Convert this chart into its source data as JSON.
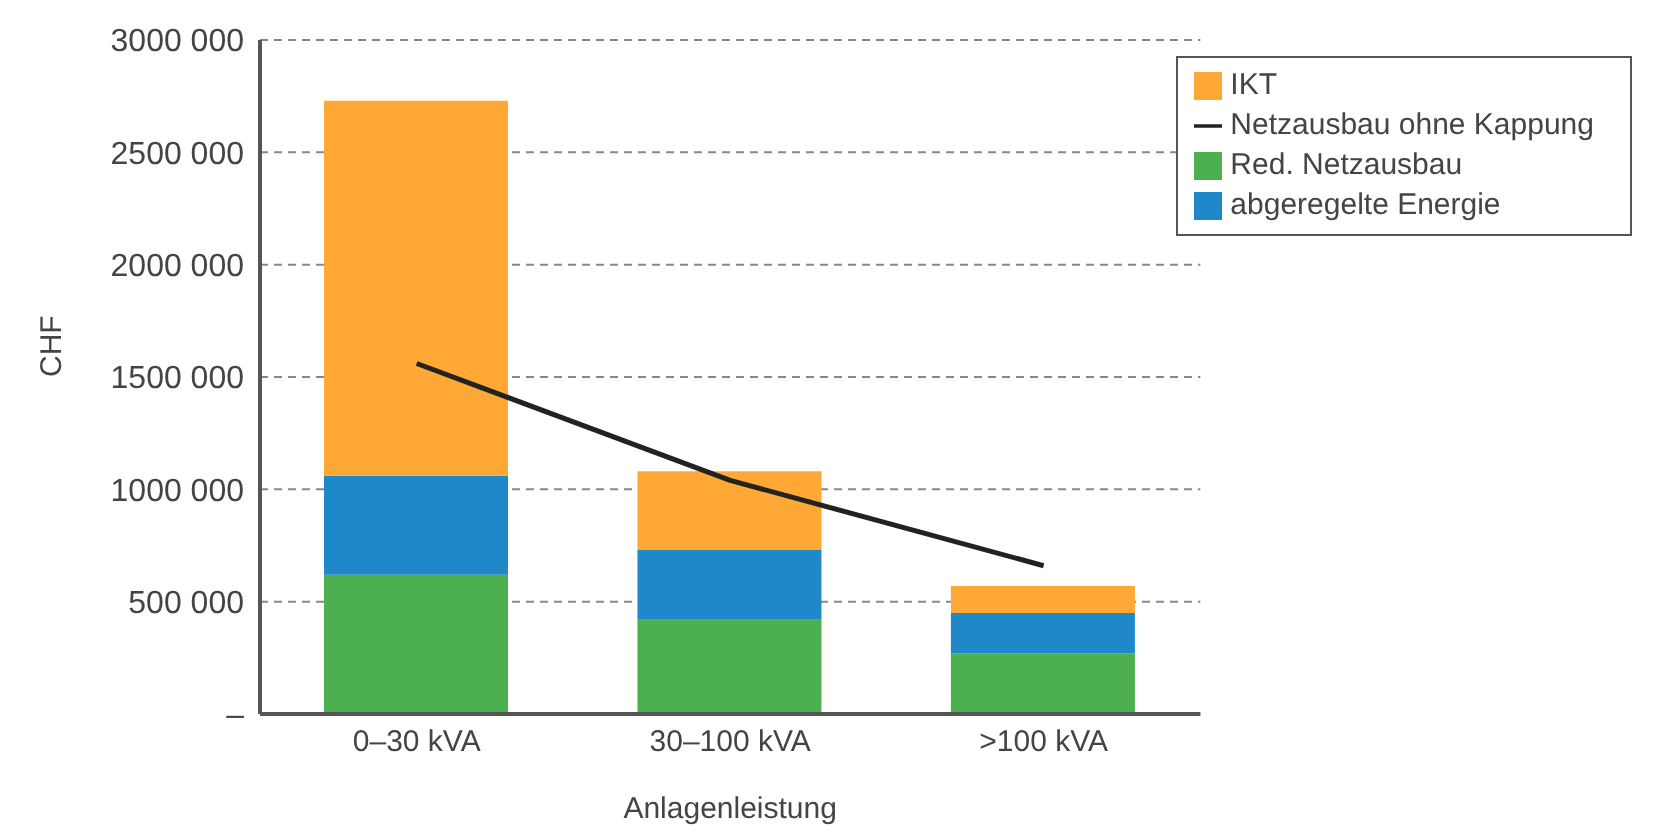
{
  "chart_data": {
    "type": "bar",
    "stacked": true,
    "xlabel": "Anlagenleistung",
    "ylabel": "CHF",
    "categories": [
      "0–30 kVA",
      "30–100 kVA",
      ">100 kVA"
    ],
    "series": [
      {
        "name": "Red. Netzausbau",
        "color": "#4caf50",
        "values": [
          620000,
          420000,
          270000
        ]
      },
      {
        "name": "abgeregelte Energie",
        "color": "#1e88c8",
        "values": [
          440000,
          310000,
          180000
        ]
      },
      {
        "name": "IKT",
        "color": "#ffa836",
        "values": [
          1670000,
          350000,
          120000
        ]
      },
      {
        "name": "Netzausbau ohne Kappung",
        "type": "line",
        "color": "#222222",
        "values": [
          1560000,
          1040000,
          660000
        ]
      }
    ],
    "ylim": [
      0,
      3000000
    ],
    "yticks": [
      {
        "value": 0,
        "label": "–"
      },
      {
        "value": 500000,
        "label": "500 000"
      },
      {
        "value": 1000000,
        "label": "1000 000"
      },
      {
        "value": 1500000,
        "label": "1500 000"
      },
      {
        "value": 2000000,
        "label": "2000 000"
      },
      {
        "value": 2500000,
        "label": "2500 000"
      },
      {
        "value": 3000000,
        "label": "3000 000"
      }
    ],
    "grid": "y",
    "legend": "top right",
    "marker": "none",
    "line_style": "solid"
  }
}
